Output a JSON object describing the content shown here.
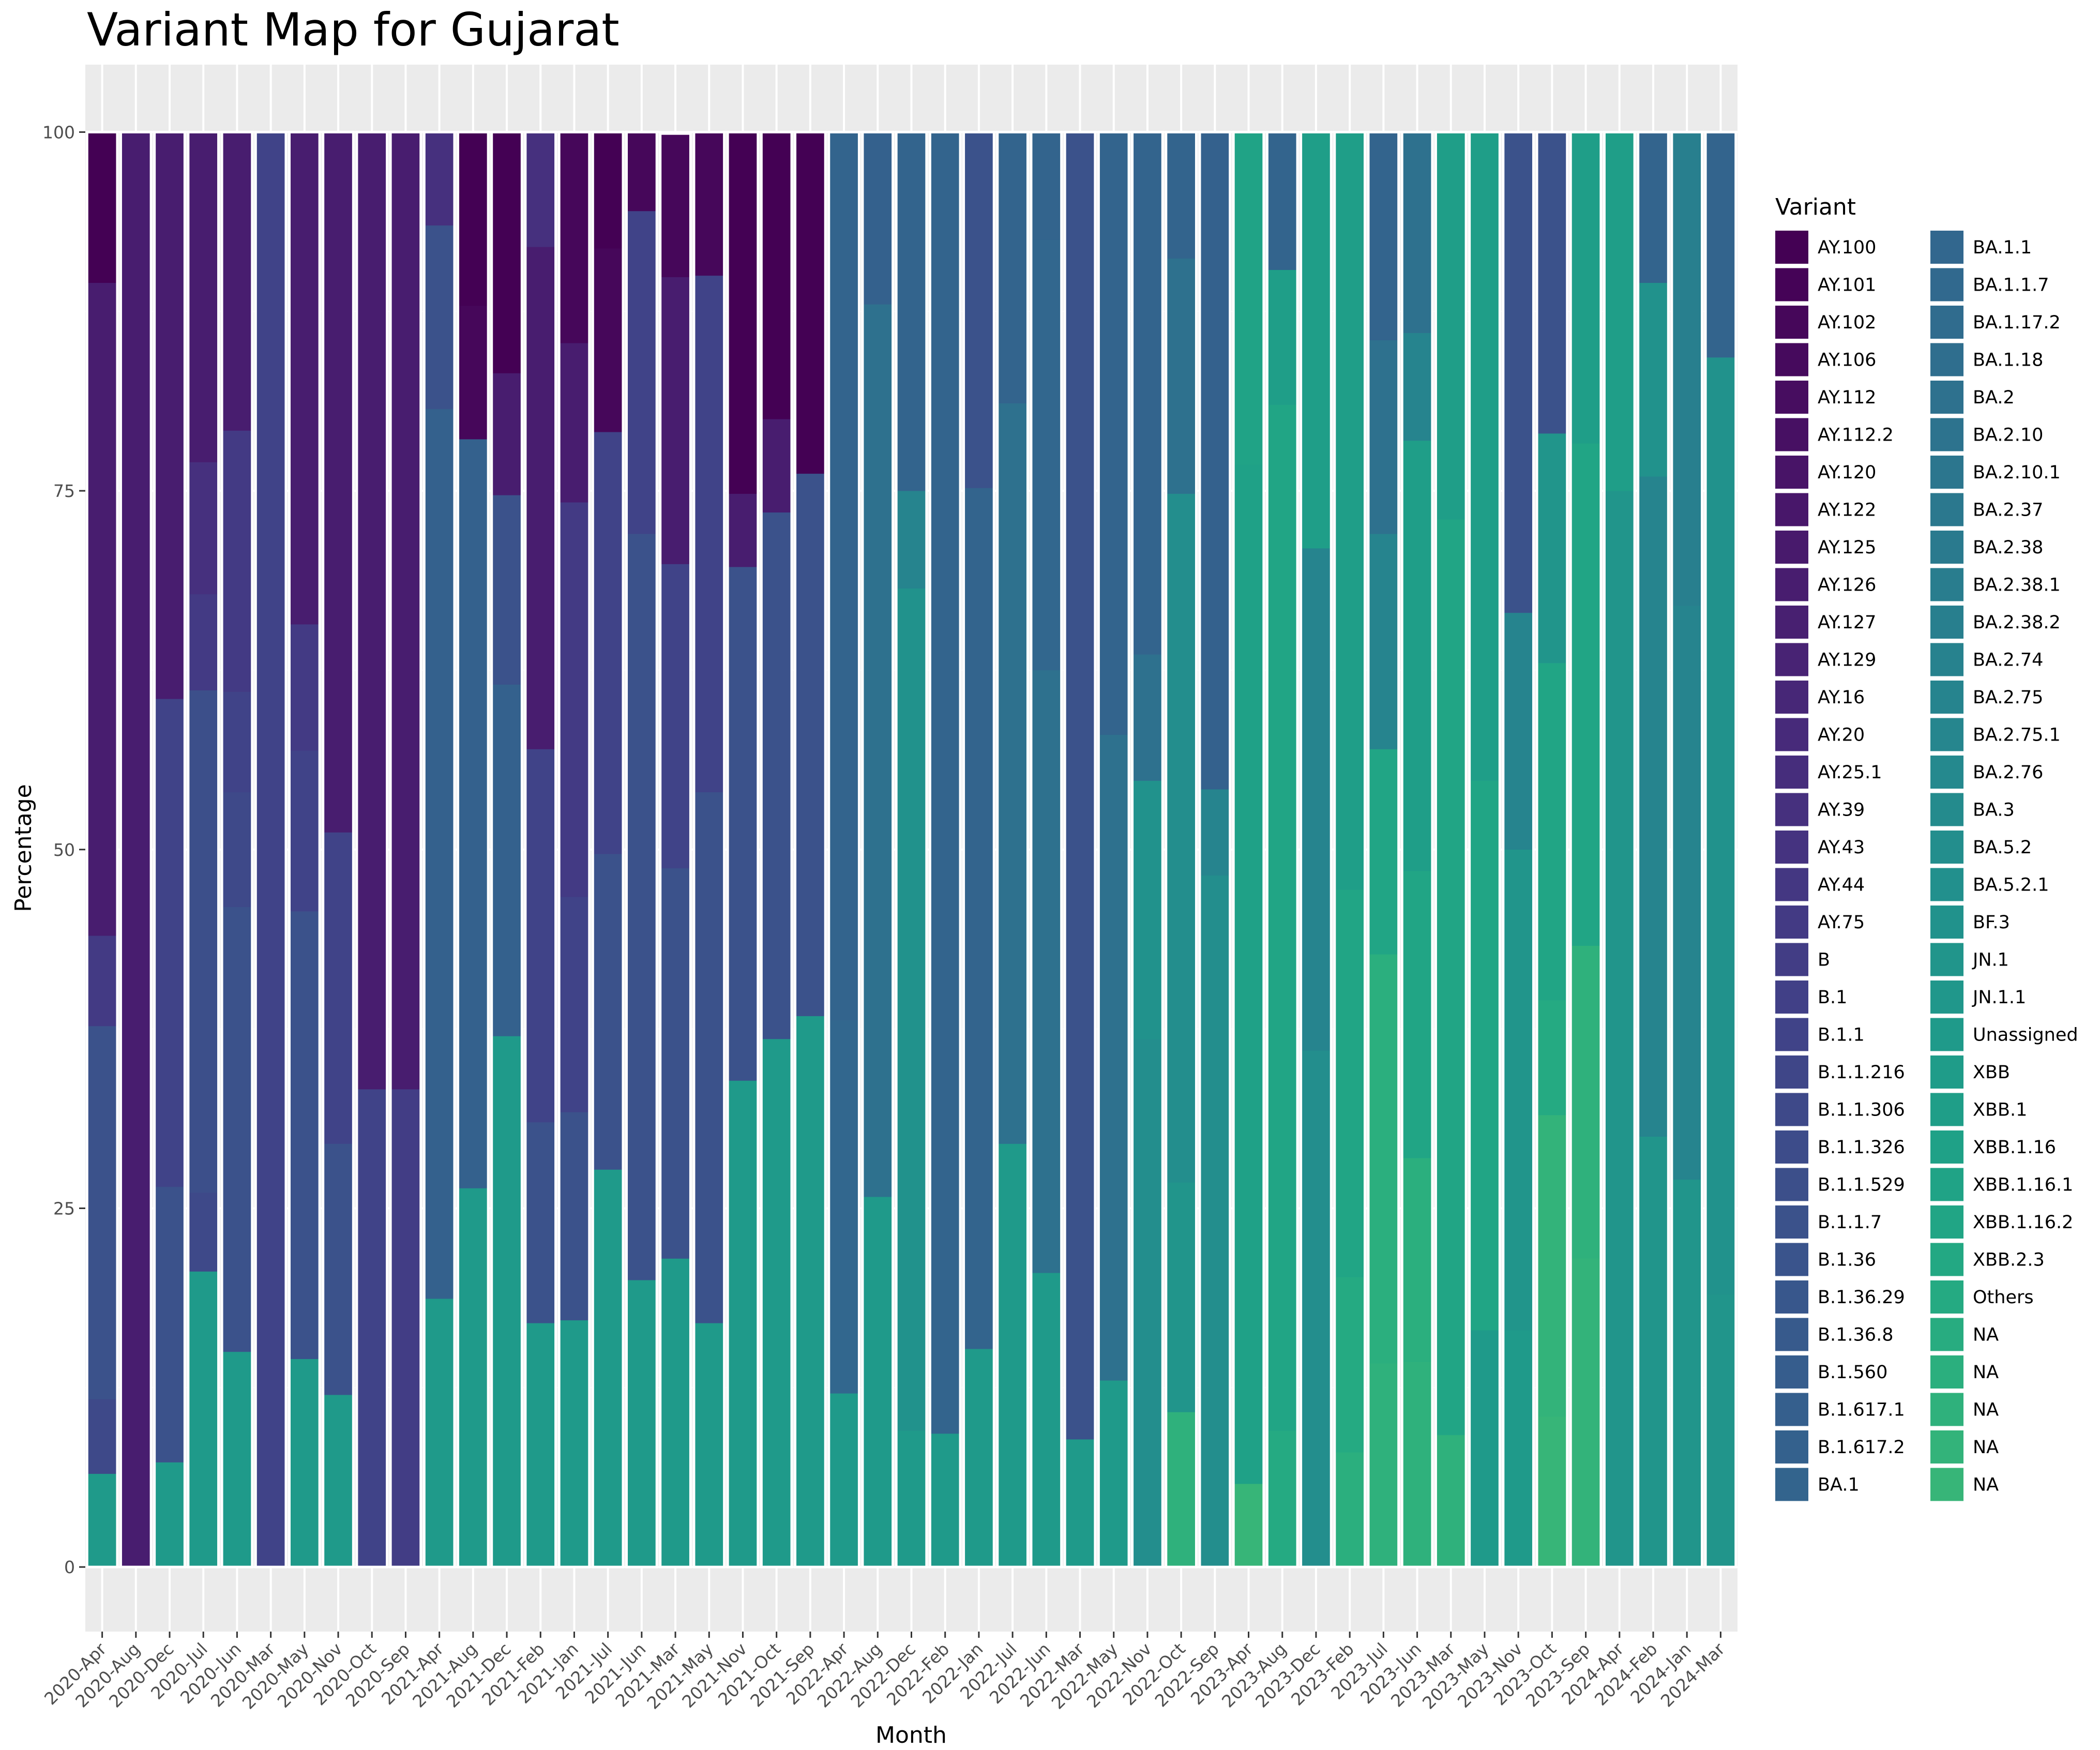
{
  "chart_data": {
    "type": "bar",
    "stacked": true,
    "title": "Variant Map for Gujarat",
    "xlabel": "Month",
    "ylabel": "Percentage",
    "ylim": [
      -4.5,
      104.7
    ],
    "yticks": [
      0,
      25,
      50,
      75,
      100
    ],
    "grid": true,
    "legend_title": "Variant",
    "legend_position": "right",
    "categories": [
      "2020-Apr",
      "2020-Aug",
      "2020-Dec",
      "2020-Jul",
      "2020-Jun",
      "2020-Mar",
      "2020-May",
      "2020-Nov",
      "2020-Oct",
      "2020-Sep",
      "2021-Apr",
      "2021-Aug",
      "2021-Dec",
      "2021-Feb",
      "2021-Jan",
      "2021-Jul",
      "2021-Jun",
      "2021-Mar",
      "2021-May",
      "2021-Nov",
      "2021-Oct",
      "2021-Sep",
      "2022-Apr",
      "2022-Aug",
      "2022-Dec",
      "2022-Feb",
      "2022-Jan",
      "2022-Jul",
      "2022-Jun",
      "2022-Mar",
      "2022-May",
      "2022-Nov",
      "2022-Oct",
      "2022-Sep",
      "2023-Apr",
      "2023-Aug",
      "2023-Dec",
      "2023-Feb",
      "2023-Jul",
      "2023-Jun",
      "2023-Mar",
      "2023-May",
      "2023-Nov",
      "2023-Oct",
      "2023-Sep",
      "2024-Apr",
      "2024-Feb",
      "2024-Jan",
      "2024-Mar"
    ],
    "legend": [
      {
        "name": "AY.100",
        "color": "#440154"
      },
      {
        "name": "AY.101",
        "color": "#450357"
      },
      {
        "name": "AY.102",
        "color": "#46075a"
      },
      {
        "name": "AY.106",
        "color": "#460a5d"
      },
      {
        "name": "AY.112",
        "color": "#470d60"
      },
      {
        "name": "AY.112.2",
        "color": "#471063"
      },
      {
        "name": "AY.120",
        "color": "#481467"
      },
      {
        "name": "AY.122",
        "color": "#48176a"
      },
      {
        "name": "AY.125",
        "color": "#481a6c"
      },
      {
        "name": "AY.126",
        "color": "#481d6f"
      },
      {
        "name": "AY.127",
        "color": "#482071"
      },
      {
        "name": "AY.129",
        "color": "#482374"
      },
      {
        "name": "AY.16",
        "color": "#472777"
      },
      {
        "name": "AY.20",
        "color": "#472a7a"
      },
      {
        "name": "AY.25.1",
        "color": "#462d7c"
      },
      {
        "name": "AY.39",
        "color": "#46307e"
      },
      {
        "name": "AY.43",
        "color": "#453380"
      },
      {
        "name": "AY.44",
        "color": "#443782"
      },
      {
        "name": "AY.75",
        "color": "#433a84"
      },
      {
        "name": "B",
        "color": "#423d85"
      },
      {
        "name": "B.1",
        "color": "#414087"
      },
      {
        "name": "B.1.1",
        "color": "#404388"
      },
      {
        "name": "B.1.1.216",
        "color": "#3f4688"
      },
      {
        "name": "B.1.1.306",
        "color": "#3e4989"
      },
      {
        "name": "B.1.1.326",
        "color": "#3d4c8a"
      },
      {
        "name": "B.1.1.529",
        "color": "#3c4f8a"
      },
      {
        "name": "B.1.1.7",
        "color": "#3b528b"
      },
      {
        "name": "B.1.36",
        "color": "#3a548c"
      },
      {
        "name": "B.1.36.29",
        "color": "#38578c"
      },
      {
        "name": "B.1.36.8",
        "color": "#375a8c"
      },
      {
        "name": "B.1.560",
        "color": "#365d8d"
      },
      {
        "name": "B.1.617.1",
        "color": "#355f8d"
      },
      {
        "name": "B.1.617.2",
        "color": "#34618d"
      },
      {
        "name": "BA.1",
        "color": "#33648d"
      },
      {
        "name": "BA.1.1",
        "color": "#32678e"
      },
      {
        "name": "BA.1.1.7",
        "color": "#31698e"
      },
      {
        "name": "BA.1.17.2",
        "color": "#306c8e"
      },
      {
        "name": "BA.1.18",
        "color": "#2f6e8e"
      },
      {
        "name": "BA.2",
        "color": "#2e718e"
      },
      {
        "name": "BA.2.10",
        "color": "#2d738e"
      },
      {
        "name": "BA.2.10.1",
        "color": "#2c768e"
      },
      {
        "name": "BA.2.37",
        "color": "#2b788e"
      },
      {
        "name": "BA.2.38",
        "color": "#2a7a8e"
      },
      {
        "name": "BA.2.38.1",
        "color": "#297d8e"
      },
      {
        "name": "BA.2.38.2",
        "color": "#287f8e"
      },
      {
        "name": "BA.2.74",
        "color": "#27828e"
      },
      {
        "name": "BA.2.75",
        "color": "#26848e"
      },
      {
        "name": "BA.2.75.1",
        "color": "#26868e"
      },
      {
        "name": "BA.2.76",
        "color": "#25898e"
      },
      {
        "name": "BA.3",
        "color": "#248b8d"
      },
      {
        "name": "BA.5.2",
        "color": "#238e8d"
      },
      {
        "name": "BA.5.2.1",
        "color": "#22908d"
      },
      {
        "name": "BF.3",
        "color": "#21928c"
      },
      {
        "name": "JN.1",
        "color": "#21958b"
      },
      {
        "name": "JN.1.1",
        "color": "#20978b"
      },
      {
        "name": "Unassigned",
        "color": "#1f9a8a"
      },
      {
        "name": "XBB",
        "color": "#1f9c89"
      },
      {
        "name": "XBB.1",
        "color": "#1f9e88"
      },
      {
        "name": "XBB.1.16",
        "color": "#1fa187"
      },
      {
        "name": "XBB.1.16.1",
        "color": "#20a386"
      },
      {
        "name": "XBB.1.16.2",
        "color": "#21a585"
      },
      {
        "name": "XBB.2.3",
        "color": "#23a883"
      },
      {
        "name": "Others",
        "color": "#25aa82"
      },
      {
        "name": "NA",
        "color": "#28ac80"
      },
      {
        "name": "NA",
        "color": "#2baf7e"
      },
      {
        "name": "NA",
        "color": "#2fb17c"
      },
      {
        "name": "NA",
        "color": "#33b37a"
      },
      {
        "name": "NA",
        "color": "#37b578"
      }
    ],
    "stacks": [
      [
        [
          6.5,
          "#1f9a8a"
        ],
        [
          5.2,
          "#3e4989"
        ],
        [
          26,
          "#3b528b"
        ],
        [
          6.3,
          "#433a84"
        ],
        [
          45.5,
          "#481d6f"
        ],
        [
          10.5,
          "#440154"
        ]
      ],
      [
        [
          100,
          "#481d6f"
        ]
      ],
      [
        [
          7.3,
          "#1f9a8a"
        ],
        [
          19.2,
          "#3b528b"
        ],
        [
          34,
          "#404388"
        ],
        [
          39.5,
          "#481d6f"
        ]
      ],
      [
        [
          20.6,
          "#1f9a8a"
        ],
        [
          5.5,
          "#3e4989"
        ],
        [
          35,
          "#3c4f8a"
        ],
        [
          6.7,
          "#433a84"
        ],
        [
          9.2,
          "#46307e"
        ],
        [
          23,
          "#481d6f"
        ]
      ],
      [
        [
          15,
          "#1f9a8a"
        ],
        [
          31,
          "#3b528b"
        ],
        [
          8,
          "#3e4989"
        ],
        [
          7,
          "#404388"
        ],
        [
          18.2,
          "#433a84"
        ],
        [
          20.8,
          "#481d6f"
        ]
      ],
      [
        [
          100,
          "#404388"
        ]
      ],
      [
        [
          14.5,
          "#1f9a8a"
        ],
        [
          31.2,
          "#3b528b"
        ],
        [
          11.2,
          "#404388"
        ],
        [
          8.8,
          "#433a84"
        ],
        [
          34.3,
          "#481d6f"
        ]
      ],
      [
        [
          12,
          "#1f9a8a"
        ],
        [
          17.5,
          "#3b528b"
        ],
        [
          21.7,
          "#404388"
        ],
        [
          48.8,
          "#481d6f"
        ]
      ],
      [
        [
          33.3,
          "#404388"
        ],
        [
          66.7,
          "#481d6f"
        ]
      ],
      [
        [
          33.3,
          "#423d85"
        ],
        [
          66.7,
          "#481d6f"
        ]
      ],
      [
        [
          18.7,
          "#1f9a8a"
        ],
        [
          62,
          "#34618d"
        ],
        [
          12.8,
          "#3b528b"
        ],
        [
          6.5,
          "#46307e"
        ]
      ],
      [
        [
          26.4,
          "#1f9a8a"
        ],
        [
          52.2,
          "#34618d"
        ],
        [
          9.3,
          "#46075a"
        ],
        [
          12.1,
          "#440154"
        ]
      ],
      [
        [
          37,
          "#1f9a8a"
        ],
        [
          24.5,
          "#34618d"
        ],
        [
          13.2,
          "#3b528b"
        ],
        [
          8.5,
          "#481d6f"
        ],
        [
          16.8,
          "#440154"
        ]
      ],
      [
        [
          17,
          "#1f9a8a"
        ],
        [
          14,
          "#3b528b"
        ],
        [
          26,
          "#404388"
        ],
        [
          35,
          "#481d6f"
        ],
        [
          8,
          "#46307e"
        ]
      ],
      [
        [
          17.2,
          "#1f9a8a"
        ],
        [
          14.5,
          "#3b528b"
        ],
        [
          15,
          "#404388"
        ],
        [
          27.5,
          "#433a84"
        ],
        [
          11.1,
          "#481d6f"
        ],
        [
          14.7,
          "#46075a"
        ]
      ],
      [
        [
          27.7,
          "#1f9a8a"
        ],
        [
          22,
          "#3b528b"
        ],
        [
          29.4,
          "#404388"
        ],
        [
          12.8,
          "#46075a"
        ],
        [
          8.1,
          "#440154"
        ]
      ],
      [
        [
          20,
          "#1f9a8a"
        ],
        [
          52,
          "#3b528b"
        ],
        [
          22.5,
          "#404388"
        ],
        [
          5.5,
          "#46075a"
        ]
      ],
      [
        [
          21.5,
          "#1f9a8a"
        ],
        [
          27.2,
          "#3b528b"
        ],
        [
          21.2,
          "#404388"
        ],
        [
          20,
          "#481d6f"
        ],
        [
          10,
          "#46075a"
        ]
      ],
      [
        [
          17,
          "#1f9a8a"
        ],
        [
          37,
          "#3b528b"
        ],
        [
          36,
          "#404388"
        ],
        [
          10,
          "#46075a"
        ]
      ],
      [
        [
          33.9,
          "#1f9a8a"
        ],
        [
          35.8,
          "#3b528b"
        ],
        [
          5.1,
          "#481d6f"
        ],
        [
          25.2,
          "#440154"
        ]
      ],
      [
        [
          36.8,
          "#1f9a8a"
        ],
        [
          36.7,
          "#3b528b"
        ],
        [
          6.5,
          "#481d6f"
        ],
        [
          20,
          "#440154"
        ]
      ],
      [
        [
          38.4,
          "#1f9a8a"
        ],
        [
          37.8,
          "#3b528b"
        ],
        [
          23.8,
          "#440154"
        ]
      ],
      [
        [
          12.1,
          "#1f9a8a"
        ],
        [
          26,
          "#32678e"
        ],
        [
          61.9,
          "#33648d"
        ]
      ],
      [
        [
          25.8,
          "#1f9a8a"
        ],
        [
          62.2,
          "#2e718e"
        ],
        [
          12,
          "#34618d"
        ]
      ],
      [
        [
          9.5,
          "#1f9a8a"
        ],
        [
          58.7,
          "#21928c"
        ],
        [
          6.8,
          "#26848e"
        ],
        [
          25,
          "#33648d"
        ]
      ],
      [
        [
          9.3,
          "#1f9a8a"
        ],
        [
          90.7,
          "#33648d"
        ]
      ],
      [
        [
          15.2,
          "#1f9a8a"
        ],
        [
          60,
          "#33648d"
        ],
        [
          24.8,
          "#3b528b"
        ]
      ],
      [
        [
          29.5,
          "#1f9a8a"
        ],
        [
          51.6,
          "#2e718e"
        ],
        [
          18.9,
          "#33648d"
        ]
      ],
      [
        [
          20.5,
          "#1f9a8a"
        ],
        [
          42,
          "#2e718e"
        ],
        [
          30,
          "#32678e"
        ],
        [
          7.5,
          "#33648d"
        ]
      ],
      [
        [
          8.9,
          "#1f9a8a"
        ],
        [
          91.1,
          "#3b528b"
        ]
      ],
      [
        [
          13,
          "#1f9a8a"
        ],
        [
          45,
          "#2e718e"
        ],
        [
          42,
          "#33648d"
        ]
      ],
      [
        [
          36.8,
          "#238e8d"
        ],
        [
          18,
          "#21928c"
        ],
        [
          8.8,
          "#2e718e"
        ],
        [
          36.4,
          "#33648d"
        ]
      ],
      [
        [
          10.8,
          "#2fb17c"
        ],
        [
          16,
          "#21958b"
        ],
        [
          48,
          "#238e8d"
        ],
        [
          16.4,
          "#2e718e"
        ],
        [
          8.8,
          "#33648d"
        ]
      ],
      [
        [
          48.2,
          "#238e8d"
        ],
        [
          6,
          "#26848e"
        ],
        [
          45.8,
          "#34618d"
        ]
      ],
      [
        [
          5.8,
          "#37b578"
        ],
        [
          71,
          "#1fa187"
        ],
        [
          23.2,
          "#20a386"
        ]
      ],
      [
        [
          9.5,
          "#25aa82"
        ],
        [
          71.5,
          "#21a585"
        ],
        [
          9.4,
          "#1f9e88"
        ],
        [
          9.6,
          "#33648d"
        ]
      ],
      [
        [
          36,
          "#238e8d"
        ],
        [
          35,
          "#26848e"
        ],
        [
          29,
          "#1f9e88"
        ]
      ],
      [
        [
          8,
          "#2baf7e"
        ],
        [
          12.2,
          "#25aa82"
        ],
        [
          27,
          "#21a585"
        ],
        [
          52.8,
          "#1f9e88"
        ]
      ],
      [
        [
          14.2,
          "#2fb17c"
        ],
        [
          28.5,
          "#2baf7e"
        ],
        [
          14.3,
          "#21a585"
        ],
        [
          15,
          "#26848e"
        ],
        [
          13.5,
          "#2e718e"
        ],
        [
          14.5,
          "#33648d"
        ]
      ],
      [
        [
          14.3,
          "#2fb17c"
        ],
        [
          14.2,
          "#2baf7e"
        ],
        [
          20,
          "#21a585"
        ],
        [
          30,
          "#1f9e88"
        ],
        [
          7.5,
          "#26848e"
        ],
        [
          14,
          "#2e718e"
        ]
      ],
      [
        [
          9.2,
          "#2fb17c"
        ],
        [
          63.8,
          "#21a585"
        ],
        [
          27,
          "#1f9e88"
        ]
      ],
      [
        [
          16.5,
          "#1f9a8a"
        ],
        [
          38.3,
          "#21a585"
        ],
        [
          45.2,
          "#1f9e88"
        ]
      ],
      [
        [
          16.5,
          "#1f9a8a"
        ],
        [
          33.5,
          "#21958b"
        ],
        [
          16.5,
          "#26848e"
        ],
        [
          33.5,
          "#3b528b"
        ]
      ],
      [
        [
          10.5,
          "#37b578"
        ],
        [
          21,
          "#33b37a"
        ],
        [
          8,
          "#25aa82"
        ],
        [
          23.5,
          "#21a585"
        ],
        [
          16,
          "#21958b"
        ],
        [
          21,
          "#3b528b"
        ]
      ],
      [
        [
          21.5,
          "#33b37a"
        ],
        [
          21.8,
          "#2fb17c"
        ],
        [
          35,
          "#21a585"
        ],
        [
          21.7,
          "#1f9e88"
        ]
      ],
      [
        [
          75,
          "#21958b"
        ],
        [
          25,
          "#1f9e88"
        ]
      ],
      [
        [
          30,
          "#21958b"
        ],
        [
          46,
          "#26848e"
        ],
        [
          13.5,
          "#21928c"
        ],
        [
          10.5,
          "#33648d"
        ]
      ],
      [
        [
          27,
          "#21958b"
        ],
        [
          40,
          "#26848e"
        ],
        [
          33,
          "#287f8e"
        ]
      ],
      [
        [
          19,
          "#21958b"
        ],
        [
          65.3,
          "#21928c"
        ],
        [
          15.7,
          "#33648d"
        ]
      ]
    ]
  }
}
